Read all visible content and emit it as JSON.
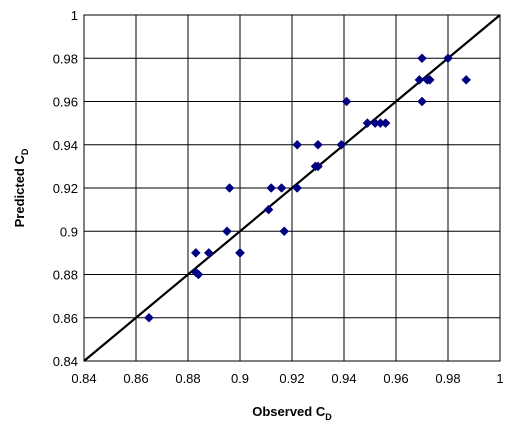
{
  "chart_data": {
    "type": "scatter",
    "xlabel": "Observed C",
    "xlabel_sub": "D",
    "ylabel": "Predicted C",
    "ylabel_sub": "D",
    "xlim": [
      0.84,
      1
    ],
    "ylim": [
      0.84,
      1
    ],
    "x_ticks": [
      0.84,
      0.86,
      0.88,
      0.9,
      0.92,
      0.94,
      0.96,
      0.98,
      1
    ],
    "y_ticks": [
      0.84,
      0.86,
      0.88,
      0.9,
      0.92,
      0.94,
      0.96,
      0.98,
      1
    ],
    "x_tick_labels": [
      "0.84",
      "0.86",
      "0.88",
      "0.9",
      "0.92",
      "0.94",
      "0.96",
      "0.98",
      "1"
    ],
    "y_tick_labels": [
      "0.84",
      "0.86",
      "0.88",
      "0.9",
      "0.92",
      "0.94",
      "0.96",
      "0.98",
      "1"
    ],
    "grid": true,
    "legend": "none",
    "marker": "diamond",
    "colors": {
      "marker": "#000080",
      "line": "#000000",
      "grid": "#000000"
    },
    "series": [
      {
        "points": [
          [
            0.865,
            0.86
          ],
          [
            0.883,
            0.89
          ],
          [
            0.883,
            0.881
          ],
          [
            0.884,
            0.88
          ],
          [
            0.888,
            0.89
          ],
          [
            0.895,
            0.9
          ],
          [
            0.896,
            0.92
          ],
          [
            0.9,
            0.89
          ],
          [
            0.9,
            0.89
          ],
          [
            0.911,
            0.91
          ],
          [
            0.912,
            0.92
          ],
          [
            0.916,
            0.92
          ],
          [
            0.917,
            0.9
          ],
          [
            0.922,
            0.94
          ],
          [
            0.922,
            0.92
          ],
          [
            0.929,
            0.93
          ],
          [
            0.93,
            0.93
          ],
          [
            0.93,
            0.94
          ],
          [
            0.939,
            0.94
          ],
          [
            0.941,
            0.96
          ],
          [
            0.949,
            0.95
          ],
          [
            0.952,
            0.95
          ],
          [
            0.954,
            0.95
          ],
          [
            0.956,
            0.95
          ],
          [
            0.969,
            0.97
          ],
          [
            0.97,
            0.98
          ],
          [
            0.97,
            0.96
          ],
          [
            0.972,
            0.97
          ],
          [
            0.973,
            0.97
          ],
          [
            0.98,
            0.98
          ],
          [
            0.987,
            0.97
          ]
        ]
      }
    ],
    "reference_line": {
      "from": [
        0.84,
        0.84
      ],
      "to": [
        1,
        1
      ]
    }
  }
}
